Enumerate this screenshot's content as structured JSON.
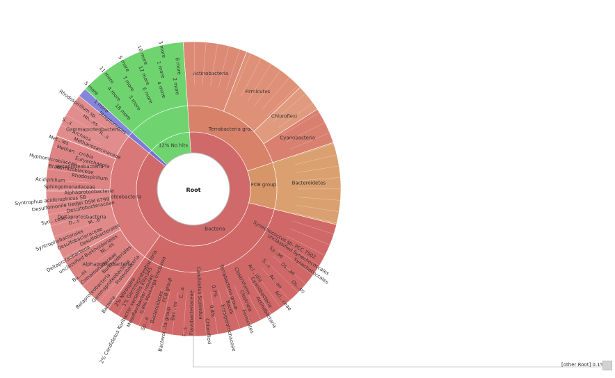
{
  "chart_data": {
    "type": "sunburst",
    "center_label": "Root",
    "rings": [
      [
        {
          "name": "Bacteria",
          "value": 87.0,
          "color": "#d06a6a"
        },
        {
          "name": "Archaea",
          "value": 1.0,
          "color": "#6f6fd6"
        },
        {
          "name": "No hits",
          "value": 12.0,
          "color": "#6fd46f",
          "label": "12%  No hits"
        }
      ],
      [
        {
          "name": "Terrabacteria group",
          "value": 21.0,
          "color": "#d8826a"
        },
        {
          "name": "FCB group",
          "value": 9.0,
          "color": "#d79668"
        },
        {
          "name": "",
          "value": 31.0,
          "color": "#d06868"
        },
        {
          "name": "Proteobacteria",
          "value": 26.0,
          "color": "#d97878"
        },
        {
          "name": "Euryarchaeota",
          "value": 1.0,
          "color": "#7a7ad8"
        },
        {
          "name": "",
          "value": 12.0,
          "color": "#6fd46f"
        }
      ],
      [
        {
          "name": "Actinobacteria",
          "value": 7.0,
          "color": "#dc8a76"
        },
        {
          "name": "Firmicutes",
          "value": 7.0,
          "color": "#df9177"
        },
        {
          "name": "Chloroflexi",
          "value": 3.0,
          "color": "#e09a7e"
        },
        {
          "name": "Cyanobacteria",
          "value": 4.0,
          "color": "#d98070"
        },
        {
          "name": "Bacteroidetes",
          "value": 9.0,
          "color": "#dba070"
        },
        {
          "name": "",
          "value": 31.0,
          "color": "#d06868"
        },
        {
          "name": "Alphaproteobacteria",
          "value": 7.0,
          "color": "#dc8080"
        },
        {
          "name": "Deltaproteobacteria",
          "value": 8.0,
          "color": "#e08a8a"
        },
        {
          "name": "Betaproteobacteria",
          "value": 6.0,
          "color": "#df8484"
        },
        {
          "name": "Gammaproteobacteria",
          "value": 5.0,
          "color": "#e28d8d"
        },
        {
          "name": "Methanomicrobia",
          "value": 1.0,
          "color": "#8585dc"
        },
        {
          "name": "",
          "value": 12.0,
          "color": "#6fd46f"
        }
      ]
    ],
    "labels": [
      "Synechococcus sp. PCC 7502",
      "unclassified Synechococcales",
      "Synechococcales",
      "Sy...ae",
      "Os...ae",
      "Os...es",
      "S...s",
      "Ac...ae",
      "Acl...ceae",
      "Acl...idia",
      "Cyanobacteria",
      "Actinobacteria",
      "Clostridiales",
      "Clostridia",
      "Firmicutes",
      "Terrabacteria group",
      "Bacilli",
      "Erysipelotrichaceae",
      "0.7%",
      "0.8%",
      "Chloroflexi",
      "Candidatus Scalindua",
      "Flavobacteriaceae",
      "F...s",
      "C...a",
      "Bac...es",
      "Bacteroi...ta group",
      "FCB group",
      "Bacteroidetes",
      "Sp...a",
      "0.8%  Marivirga tractuosa",
      "Mesoflavibacter insulae",
      "2%  Candidatus Koribacter versatilis Ellin345",
      "1%  Gammaproteobacteria",
      "2%  Nitrospira",
      "Bacteria",
      "Proteobacteria",
      "Gammaproteobacteria",
      "Betaproteobacteria",
      "Burkholderiales",
      "Comamonadaceae",
      "Bu...es",
      "Ni...es",
      "unclassified Burkholderiales",
      "Deltaproteobacteria",
      "Desulfobacterales",
      "Desulfobacteraceae",
      "Syntrophobacterales",
      "M...e",
      "D...s",
      "Syn...ceae",
      "Desulfobacteraceae",
      "Desulfomonile tiedjei DSM 6799",
      "Syntrophus aciditrophicus SB",
      "Alphaproteobacteria",
      "Sphingomonadaceae",
      "Acidiphilium",
      "Rhodospirillum",
      "Bradyrhizobiaceae",
      "Hyphomicrobiaceae",
      "Euryarchaeota",
      "Methan...crobia",
      "Met...les",
      "Methanosarcinaceae",
      "Archaea",
      "S...s",
      "R...s",
      "Hh...es",
      "Rhodospirillum sp.",
      "Streptomyces"
    ],
    "more_labels": [
      "1 more",
      "5 more",
      "18 more",
      "4 more",
      "11 more",
      "3 more",
      "7 more",
      "5 more",
      "6 more",
      "12 more",
      "18 more",
      "4 more",
      "1 more",
      "3 more",
      "2 more",
      "8 more"
    ],
    "percent_labels": [
      "6%",
      "2%",
      "2%",
      "1%",
      "1%",
      "1%",
      "0.8%",
      "0.7%",
      "0.6%",
      "0.9%",
      "1%",
      "0.1%"
    ],
    "other": {
      "label": "[other Root]",
      "value": "0.1%"
    }
  }
}
